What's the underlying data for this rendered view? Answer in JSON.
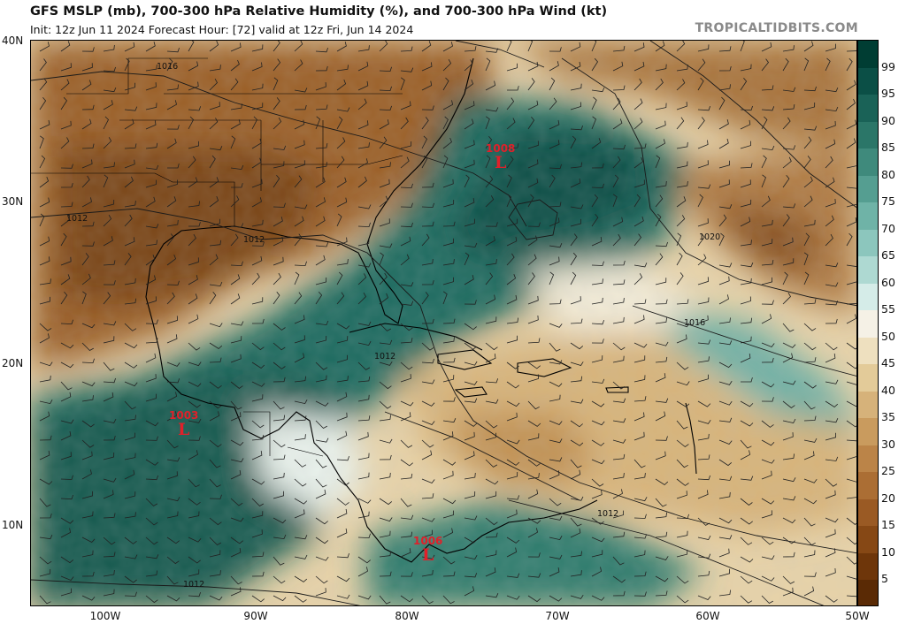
{
  "header": {
    "title": "GFS MSLP (mb), 700-300 hPa Relative Humidity (%), and 700-300 hPa Wind (kt)",
    "subtitle": "Init: 12z Jun 11 2024   Forecast Hour: [72]   valid at 12z Fri, Jun 14 2024",
    "brand": "TROPICALTIDBITS.COM"
  },
  "axes": {
    "lat_labels": [
      "40N",
      "30N",
      "20N",
      "10N"
    ],
    "lon_labels": [
      "100W",
      "90W",
      "80W",
      "70W",
      "60W",
      "50W"
    ]
  },
  "colorbar": {
    "labels": [
      "99",
      "95",
      "90",
      "85",
      "80",
      "75",
      "70",
      "65",
      "60",
      "55",
      "50",
      "45",
      "40",
      "35",
      "30",
      "25",
      "20",
      "15",
      "10",
      "5"
    ],
    "colors": [
      "#003d33",
      "#0b4f46",
      "#1a6257",
      "#2b7668",
      "#3f8a7c",
      "#559e91",
      "#6fb3a7",
      "#8cc6bd",
      "#aed9d2",
      "#d5ece8",
      "#f5f1e6",
      "#eee0bf",
      "#e3cb99",
      "#d6b27a",
      "#c99b5e",
      "#bb8448",
      "#ab6e34",
      "#9a5a24",
      "#864815",
      "#6e360a",
      "#5a2a05"
    ]
  },
  "lows": [
    {
      "pressure": "1008",
      "symbol": "L"
    },
    {
      "pressure": "1003",
      "symbol": "L"
    },
    {
      "pressure": "1006",
      "symbol": "L"
    }
  ],
  "isobar_labels": [
    "1016",
    "1012",
    "1012",
    "1012",
    "1020",
    "1016",
    "1012",
    "1012"
  ],
  "colors": {
    "low_marker": "#e0202a",
    "isobar": "#1a1a1a",
    "coast": "#000000"
  }
}
